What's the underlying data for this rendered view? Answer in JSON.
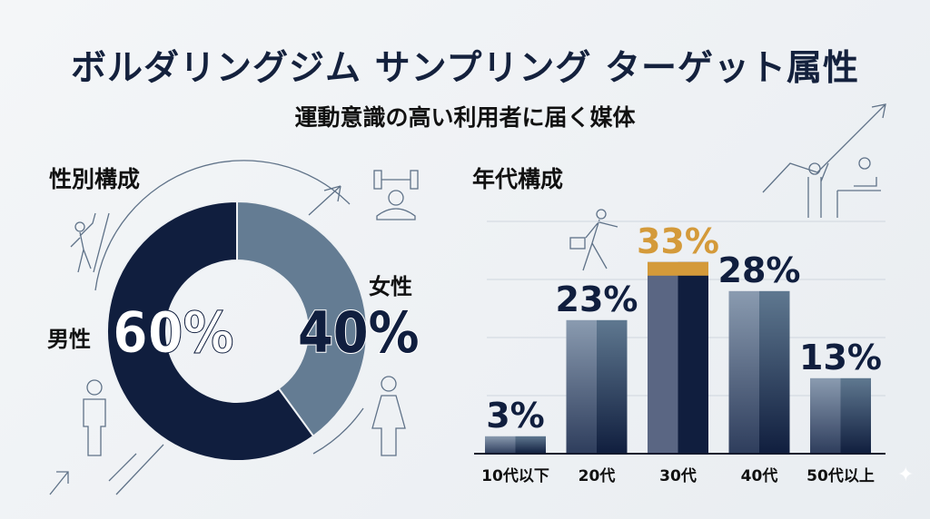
{
  "title": "ボルダリングジム サンプリング ターゲット属性",
  "subtitle": "運動意識の高い利用者に届く媒体",
  "chart_data": [
    {
      "type": "pie",
      "variant": "donut",
      "title": "性別構成",
      "categories": [
        "男性",
        "女性"
      ],
      "values": [
        60,
        40
      ],
      "labels": [
        "60%",
        "40%"
      ],
      "colors": [
        "#101e3e",
        "#647c93"
      ]
    },
    {
      "type": "bar",
      "title": "年代構成",
      "categories": [
        "10代以下",
        "20代",
        "30代",
        "40代",
        "50代以上"
      ],
      "values": [
        3,
        23,
        33,
        28,
        13
      ],
      "labels": [
        "3%",
        "23%",
        "33%",
        "28%",
        "13%"
      ],
      "ylim": [
        0,
        40
      ],
      "grid": true,
      "highlight": {
        "category": "30代",
        "color": "#d49a3a"
      },
      "colors": {
        "bar_light": "#8a9bb0",
        "bar_dark": "#101e3e"
      }
    }
  ]
}
